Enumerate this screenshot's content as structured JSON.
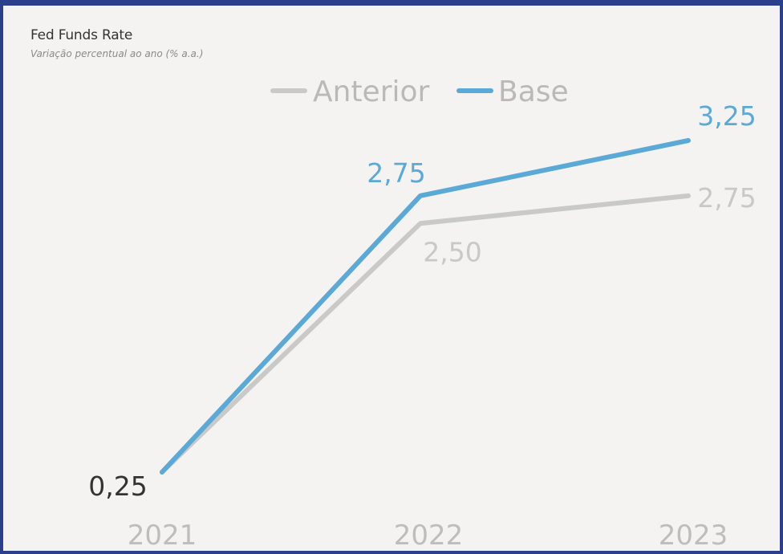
{
  "title": "Fed Funds Rate",
  "subtitle": "Variação percentual ao ano (% a.a.)",
  "colors": {
    "anterior": "#c9c9c7",
    "base": "#5aa9d6",
    "frame": "#2b3f8c",
    "label_dark": "#333333",
    "tick": "#bdbdbd"
  },
  "chart_data": {
    "type": "line",
    "title": "Fed Funds Rate",
    "subtitle": "Variação percentual ao ano (% a.a.)",
    "xlabel": "",
    "ylabel": "",
    "categories": [
      "2021",
      "2022",
      "2023"
    ],
    "legend": {
      "position": "top-center"
    },
    "grid": false,
    "series": [
      {
        "name": "Anterior",
        "values": [
          0.25,
          2.5,
          2.75
        ],
        "labels": [
          "",
          "2,50",
          "2,75"
        ]
      },
      {
        "name": "Base",
        "values": [
          0.25,
          2.75,
          3.25
        ],
        "labels": [
          "0,25",
          "2,75",
          "3,25"
        ]
      }
    ]
  }
}
